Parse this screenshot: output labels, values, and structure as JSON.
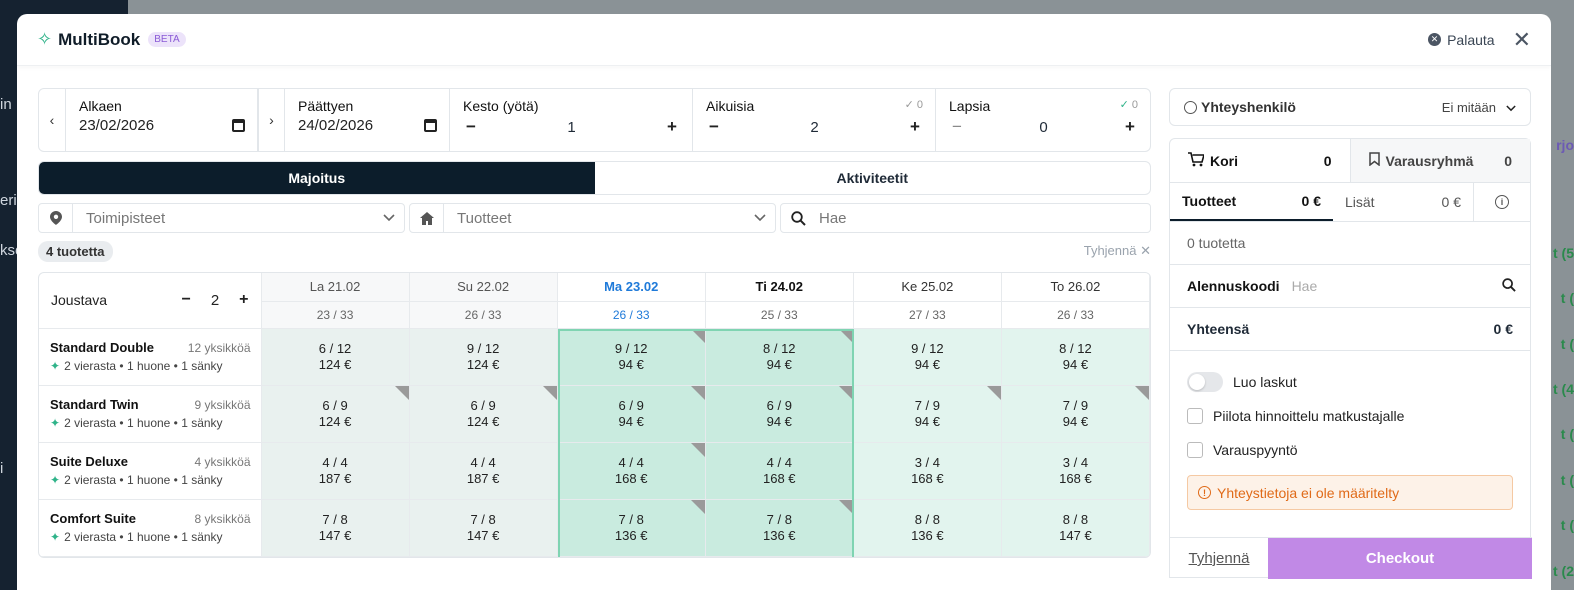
{
  "app": {
    "title": "MultiBook",
    "badge": "BETA",
    "reset_label": "Palauta"
  },
  "background": {
    "left_fragments": [
      "in",
      "eri",
      "kse",
      "i"
    ],
    "right_fragments": [
      "rjo",
      "t (5",
      "t (",
      "t (",
      "t (4",
      "t (",
      "t (",
      "t (",
      "t (2",
      "t ("
    ]
  },
  "dates": {
    "start_label": "Alkaen",
    "start_value": "23/02/2026",
    "end_label": "Päättyen",
    "end_value": "24/02/2026",
    "nights_label": "Kesto (yötä)",
    "nights_value": "1",
    "adults_label": "Aikuisia",
    "adults_value": "2",
    "adults_check": "0",
    "children_label": "Lapsia",
    "children_value": "0",
    "children_check": "0",
    "minus": "−",
    "plus": "+",
    "prev": "‹",
    "next": "›",
    "check": "✓"
  },
  "tabs": [
    {
      "label": "Majoitus"
    },
    {
      "label": "Aktiviteetit"
    }
  ],
  "filters": {
    "locations_placeholder": "Toimipisteet",
    "products_placeholder": "Tuotteet",
    "search_placeholder": "Hae"
  },
  "meta": {
    "count": "4 tuotetta",
    "clear": "Tyhjennä ✕"
  },
  "grid": {
    "flex_label": "Joustava",
    "flex_value": "2",
    "days": [
      {
        "label": "La 21.02",
        "occupancy": "23 / 33"
      },
      {
        "label": "Su 22.02",
        "occupancy": "26 / 33"
      },
      {
        "label": "Ma 23.02",
        "occupancy": "26 / 33"
      },
      {
        "label": "Ti 24.02",
        "occupancy": "25 / 33"
      },
      {
        "label": "Ke 25.02",
        "occupancy": "27 / 33"
      },
      {
        "label": "To 26.02",
        "occupancy": "26 / 33"
      }
    ],
    "rooms": [
      {
        "name": "Standard Double",
        "units": "12 yksikköä",
        "details": "2 vierasta • 1 huone • 1 sänky",
        "cells": [
          [
            "6 / 12",
            "124 €"
          ],
          [
            "9 / 12",
            "124 €"
          ],
          [
            "9 / 12",
            "94 €"
          ],
          [
            "8 / 12",
            "94 €"
          ],
          [
            "9 / 12",
            "94 €"
          ],
          [
            "8 / 12",
            "94 €"
          ]
        ]
      },
      {
        "name": "Standard Twin",
        "units": "9 yksikköä",
        "details": "2 vierasta • 1 huone • 1 sänky",
        "cells": [
          [
            "6 / 9",
            "124 €"
          ],
          [
            "6 / 9",
            "124 €"
          ],
          [
            "6 / 9",
            "94 €"
          ],
          [
            "6 / 9",
            "94 €"
          ],
          [
            "7 / 9",
            "94 €"
          ],
          [
            "7 / 9",
            "94 €"
          ]
        ]
      },
      {
        "name": "Suite Deluxe",
        "units": "4 yksikköä",
        "details": "2 vierasta • 1 huone • 1 sänky",
        "cells": [
          [
            "4 / 4",
            "187 €"
          ],
          [
            "4 / 4",
            "187 €"
          ],
          [
            "4 / 4",
            "168 €"
          ],
          [
            "4 / 4",
            "168 €"
          ],
          [
            "3 / 4",
            "168 €"
          ],
          [
            "3 / 4",
            "168 €"
          ]
        ]
      },
      {
        "name": "Comfort Suite",
        "units": "8 yksikköä",
        "details": "2 vierasta • 1 huone • 1 sänky",
        "cells": [
          [
            "7 / 8",
            "147 €"
          ],
          [
            "7 / 8",
            "147 €"
          ],
          [
            "7 / 8",
            "136 €"
          ],
          [
            "7 / 8",
            "136 €"
          ],
          [
            "8 / 8",
            "136 €"
          ],
          [
            "8 / 8",
            "147 €"
          ]
        ]
      }
    ]
  },
  "sidebar": {
    "contact_label": "Yhteyshenkilö",
    "contact_value": "Ei mitään",
    "cart_label": "Kori",
    "cart_count": "0",
    "group_label": "Varausryhmä",
    "group_count": "0",
    "products_tab": "Tuotteet",
    "products_sum": "0 €",
    "extras_tab": "Lisät",
    "extras_sum": "0 €",
    "product_count": "0 tuotetta",
    "discount_label": "Alennuskoodi",
    "discount_placeholder": "Hae",
    "total_label": "Yhteensä",
    "total_value": "0 €",
    "create_invoices": "Luo laskut",
    "hide_pricing": "Piilota hinnoittelu matkustajalle",
    "booking_request": "Varauspyyntö",
    "warning": "Yhteystietoja ei ole määritelty",
    "clear": "Tyhjennä",
    "checkout": "Checkout"
  }
}
